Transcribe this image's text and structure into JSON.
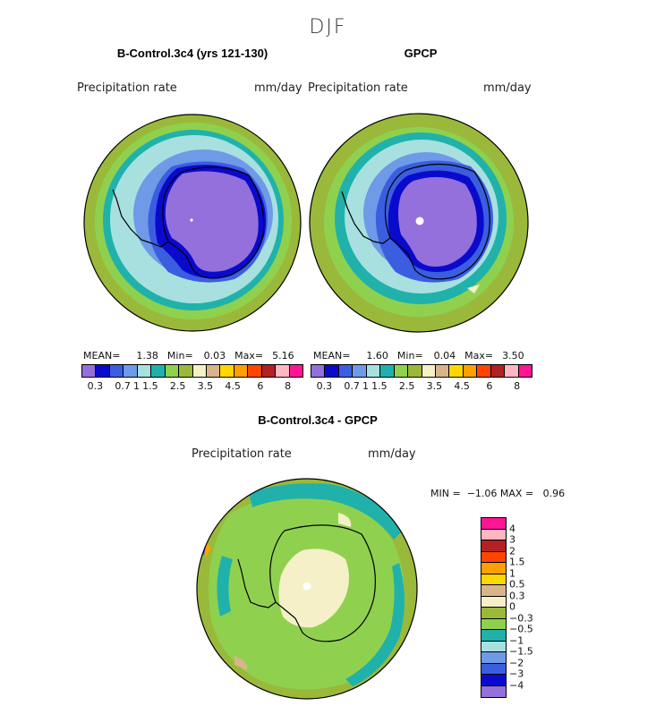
{
  "season": "DJF",
  "panels": {
    "left": {
      "title": "B-Control.3c4 (yrs 121-130)",
      "field": "Precipitation rate",
      "units": "mm/day",
      "mean_label": "MEAN=",
      "mean": "1.38",
      "min_label": "Min=",
      "min": "0.03",
      "max_label": "Max=",
      "max": "5.16"
    },
    "right": {
      "title": "GPCP",
      "field": "Precipitation rate",
      "units": "mm/day",
      "mean_label": "MEAN=",
      "mean": "1.60",
      "min_label": "Min=",
      "min": "0.04",
      "max_label": "Max=",
      "max": "3.50"
    },
    "diff": {
      "title": "B-Control.3c4 - GPCP",
      "field": "Precipitation rate",
      "units": "mm/day",
      "min_label": "MIN =",
      "min": "−1.06",
      "max_label": "MAX =",
      "max": "0.96"
    }
  },
  "colorbar": {
    "colors": [
      "#9370db",
      "#0a0acd",
      "#3b5ee0",
      "#6f9ae8",
      "#a8e0e0",
      "#20b2aa",
      "#8fd14f",
      "#9ab93a",
      "#f5f0c8",
      "#d9b48a",
      "#ffd700",
      "#ff9f00",
      "#ff4500",
      "#b22222",
      "#ffb6c1",
      "#ff1493"
    ],
    "tick_labels": [
      "0.3",
      "0.7",
      "1",
      "1.5",
      "2.5",
      "3.5",
      "4.5",
      "6",
      "8"
    ]
  },
  "diff_colorbar": {
    "colors": [
      "#ff1493",
      "#ffb6c1",
      "#b22222",
      "#ff4500",
      "#ff9f00",
      "#ffd700",
      "#d9b48a",
      "#f5f0c8",
      "#9ab93a",
      "#8fd14f",
      "#20b2aa",
      "#a8e0e0",
      "#6f9ae8",
      "#3b5ee0",
      "#0a0acd",
      "#9370db"
    ],
    "tick_labels": [
      "4",
      "3",
      "2",
      "1.5",
      "1",
      "0.5",
      "0.3",
      "0",
      "−0.3",
      "−0.5",
      "−1",
      "−1.5",
      "−2",
      "−3",
      "−4"
    ]
  }
}
